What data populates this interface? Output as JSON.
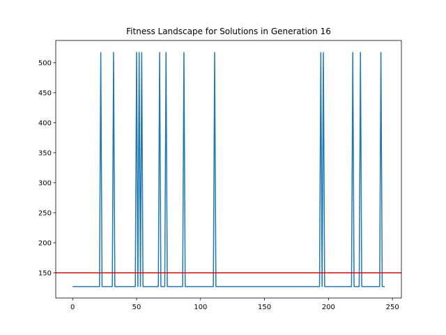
{
  "chart_data": {
    "type": "line",
    "title": "Fitness Landscape for Solutions in Generation 16",
    "xlabel": "",
    "ylabel": "",
    "xlim": [
      -13.2,
      257
    ],
    "ylim": [
      108,
      537
    ],
    "x_ticks": [
      0,
      50,
      100,
      150,
      200,
      250
    ],
    "y_ticks": [
      150,
      200,
      250,
      300,
      350,
      400,
      450,
      500
    ],
    "grid": false,
    "series": [
      {
        "color": "#1f77b4",
        "x_start": 0,
        "x_end": 244,
        "baseline": 127,
        "peak_value": 517,
        "peak_indices": [
          22,
          32,
          50,
          52,
          54,
          68,
          73,
          87,
          111,
          194,
          196,
          219,
          225,
          241
        ]
      }
    ],
    "hlines": [
      {
        "y": 150,
        "color": "#ff0000"
      }
    ]
  }
}
